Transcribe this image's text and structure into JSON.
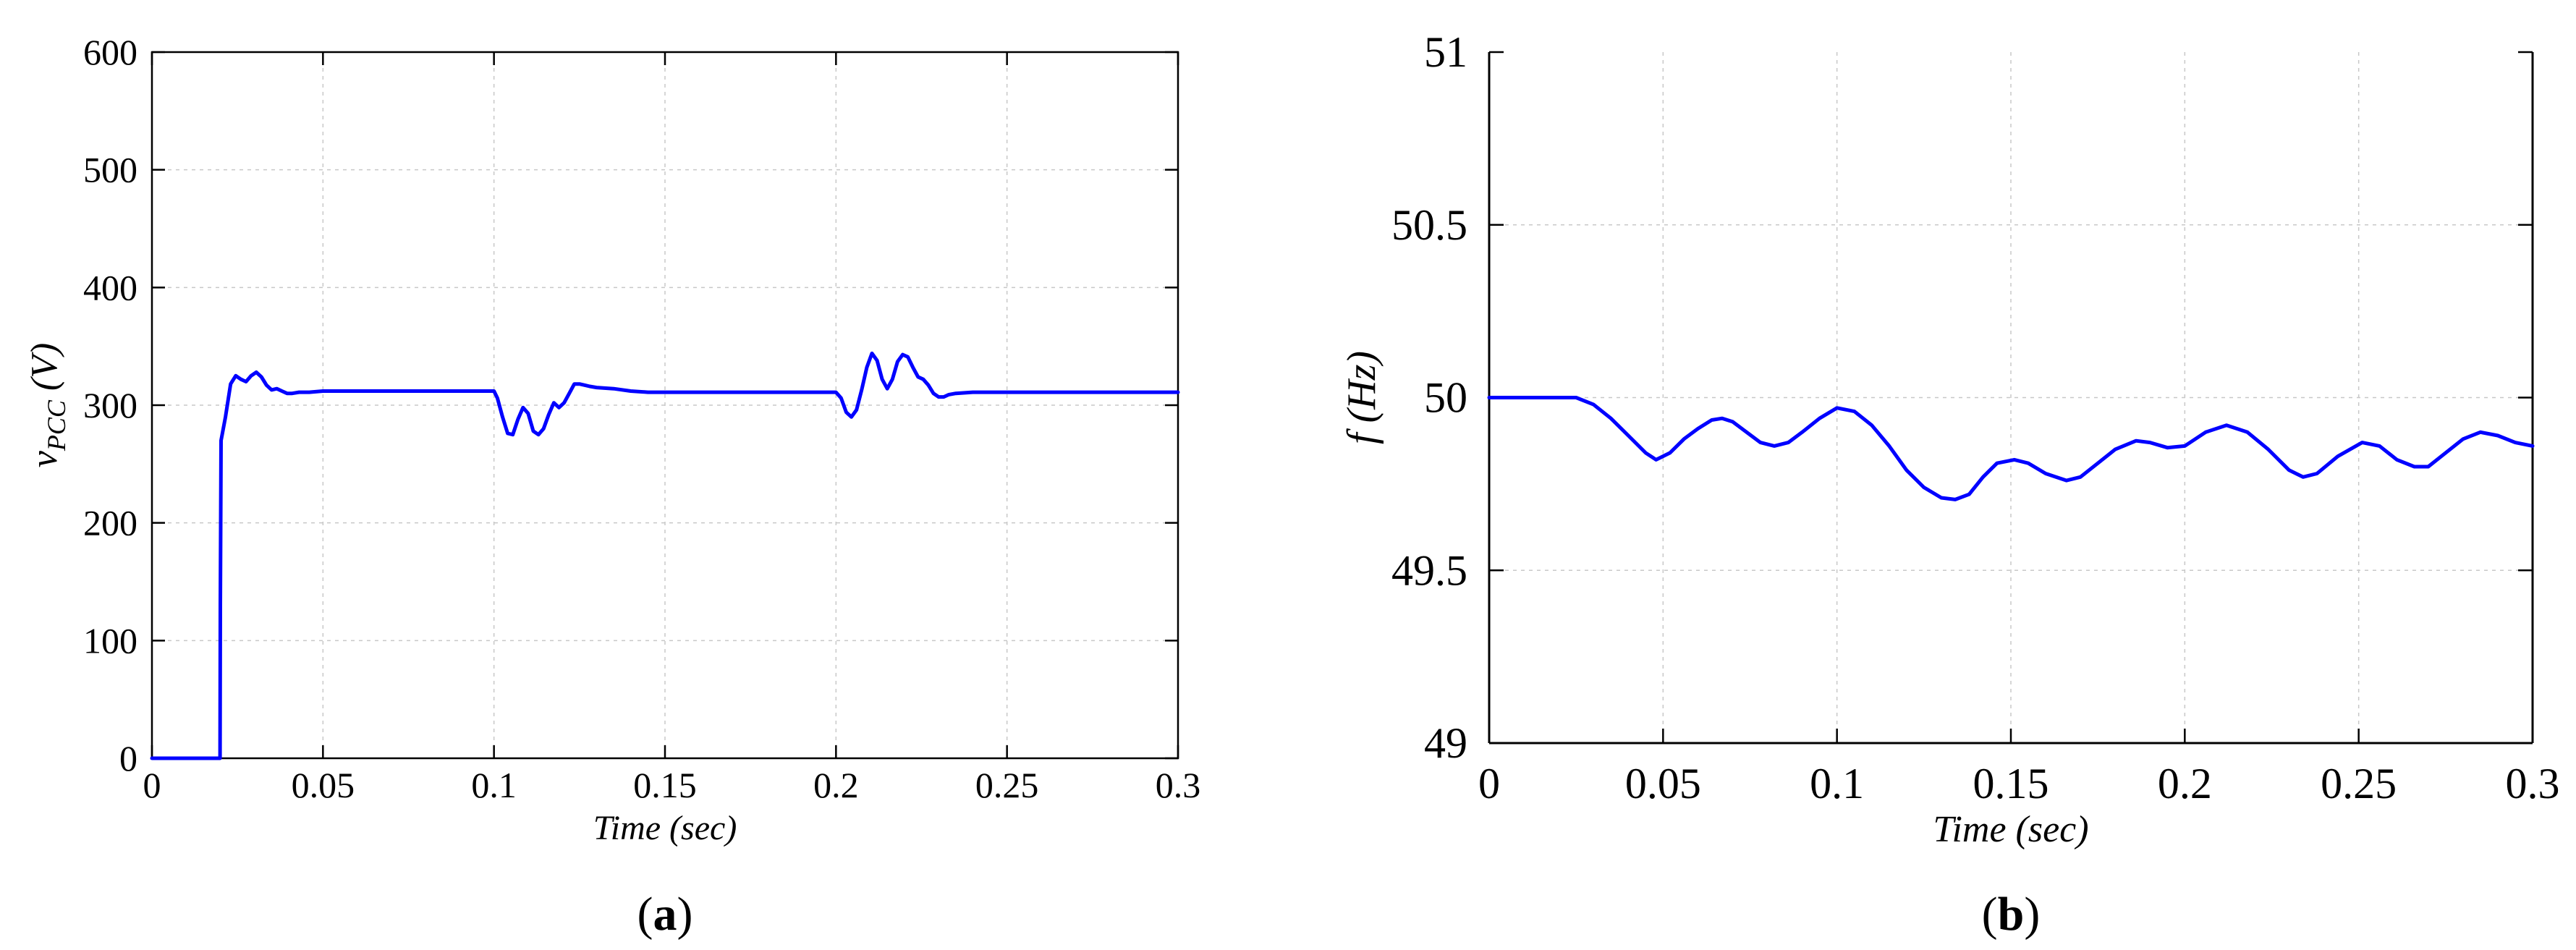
{
  "chart_data": [
    {
      "id": "a",
      "type": "line",
      "caption_open": "(",
      "caption_letter": "a",
      "caption_close": ")",
      "xlabel": "Time (sec)",
      "ylabel_main": "v",
      "ylabel_sub": "PCC",
      "ylabel_unit": " (V)",
      "xlim": [
        0,
        0.3
      ],
      "ylim": [
        0,
        600
      ],
      "xticks": [
        0,
        0.05,
        0.1,
        0.15,
        0.2,
        0.25,
        0.3
      ],
      "xtick_labels": [
        "0",
        "0.05",
        "0.1",
        "0.15",
        "0.2",
        "0.25",
        "0.3"
      ],
      "yticks": [
        0,
        100,
        200,
        300,
        400,
        500,
        600
      ],
      "ytick_labels": [
        "0",
        "100",
        "200",
        "300",
        "400",
        "500",
        "600"
      ],
      "grid": true,
      "line_color": "#0000ff",
      "series": [
        {
          "x": [
            0,
            0.0199,
            0.02,
            0.0202,
            0.0215,
            0.023,
            0.0245,
            0.026,
            0.0275,
            0.029,
            0.0305,
            0.032,
            0.0335,
            0.035,
            0.0365,
            0.038,
            0.0395,
            0.041,
            0.043,
            0.046,
            0.05,
            0.06,
            0.08,
            0.1,
            0.101,
            0.1025,
            0.104,
            0.1055,
            0.107,
            0.1085,
            0.11,
            0.1115,
            0.113,
            0.1145,
            0.116,
            0.1175,
            0.119,
            0.1205,
            0.122,
            0.1235,
            0.125,
            0.1265,
            0.128,
            0.13,
            0.135,
            0.14,
            0.145,
            0.15,
            0.17,
            0.2,
            0.2015,
            0.203,
            0.2045,
            0.206,
            0.2075,
            0.209,
            0.2105,
            0.212,
            0.2135,
            0.215,
            0.2165,
            0.218,
            0.2195,
            0.221,
            0.2225,
            0.224,
            0.2255,
            0.227,
            0.2285,
            0.23,
            0.2315,
            0.233,
            0.235,
            0.24,
            0.25,
            0.3
          ],
          "y": [
            0,
            0,
            130,
            270,
            290,
            318,
            325,
            322,
            320,
            325,
            328,
            324,
            317,
            313,
            314,
            312,
            310,
            310,
            311,
            311,
            312,
            312,
            312,
            312,
            306,
            290,
            276,
            275,
            288,
            298,
            293,
            278,
            275,
            280,
            292,
            302,
            298,
            302,
            310,
            318,
            318,
            317,
            316,
            315,
            314,
            312,
            311,
            311,
            311,
            311,
            306,
            294,
            290,
            296,
            313,
            332,
            344,
            338,
            322,
            314,
            322,
            337,
            343,
            341,
            332,
            324,
            322,
            317,
            310,
            307,
            307,
            309,
            310,
            311,
            311,
            311
          ]
        }
      ]
    },
    {
      "id": "b",
      "type": "line",
      "caption_open": "(",
      "caption_letter": "b",
      "caption_close": ")",
      "xlabel": "Time (sec)",
      "ylabel": "f (Hz)",
      "xlim": [
        0,
        0.3
      ],
      "ylim": [
        49,
        51
      ],
      "xticks": [
        0,
        0.05,
        0.1,
        0.15,
        0.2,
        0.25,
        0.3
      ],
      "xtick_labels": [
        "0",
        "0.05",
        "0.1",
        "0.15",
        "0.2",
        "0.25",
        "0.3"
      ],
      "yticks": [
        49,
        49.5,
        50,
        50.5,
        51
      ],
      "ytick_labels": [
        "49",
        "49.5",
        "50",
        "50.5",
        "51"
      ],
      "grid": true,
      "line_color": "#0000ff",
      "series": [
        {
          "x": [
            0,
            0.01,
            0.02,
            0.025,
            0.03,
            0.035,
            0.04,
            0.045,
            0.048,
            0.052,
            0.056,
            0.06,
            0.064,
            0.067,
            0.07,
            0.074,
            0.078,
            0.082,
            0.086,
            0.09,
            0.095,
            0.1,
            0.105,
            0.11,
            0.115,
            0.12,
            0.125,
            0.13,
            0.134,
            0.138,
            0.142,
            0.146,
            0.151,
            0.155,
            0.16,
            0.166,
            0.17,
            0.175,
            0.18,
            0.186,
            0.19,
            0.195,
            0.2,
            0.206,
            0.212,
            0.218,
            0.224,
            0.23,
            0.234,
            0.238,
            0.244,
            0.251,
            0.256,
            0.261,
            0.266,
            0.27,
            0.275,
            0.28,
            0.285,
            0.29,
            0.295,
            0.3
          ],
          "y": [
            50,
            50,
            50,
            50,
            49.98,
            49.94,
            49.89,
            49.84,
            49.82,
            49.84,
            49.88,
            49.91,
            49.935,
            49.94,
            49.93,
            49.9,
            49.87,
            49.86,
            49.87,
            49.9,
            49.94,
            49.97,
            49.96,
            49.92,
            49.86,
            49.79,
            49.74,
            49.71,
            49.705,
            49.72,
            49.77,
            49.81,
            49.82,
            49.81,
            49.78,
            49.76,
            49.77,
            49.81,
            49.85,
            49.875,
            49.87,
            49.855,
            49.86,
            49.9,
            49.92,
            49.9,
            49.85,
            49.79,
            49.77,
            49.78,
            49.83,
            49.87,
            49.86,
            49.82,
            49.8,
            49.8,
            49.84,
            49.88,
            49.9,
            49.89,
            49.87,
            49.86
          ]
        }
      ]
    }
  ]
}
